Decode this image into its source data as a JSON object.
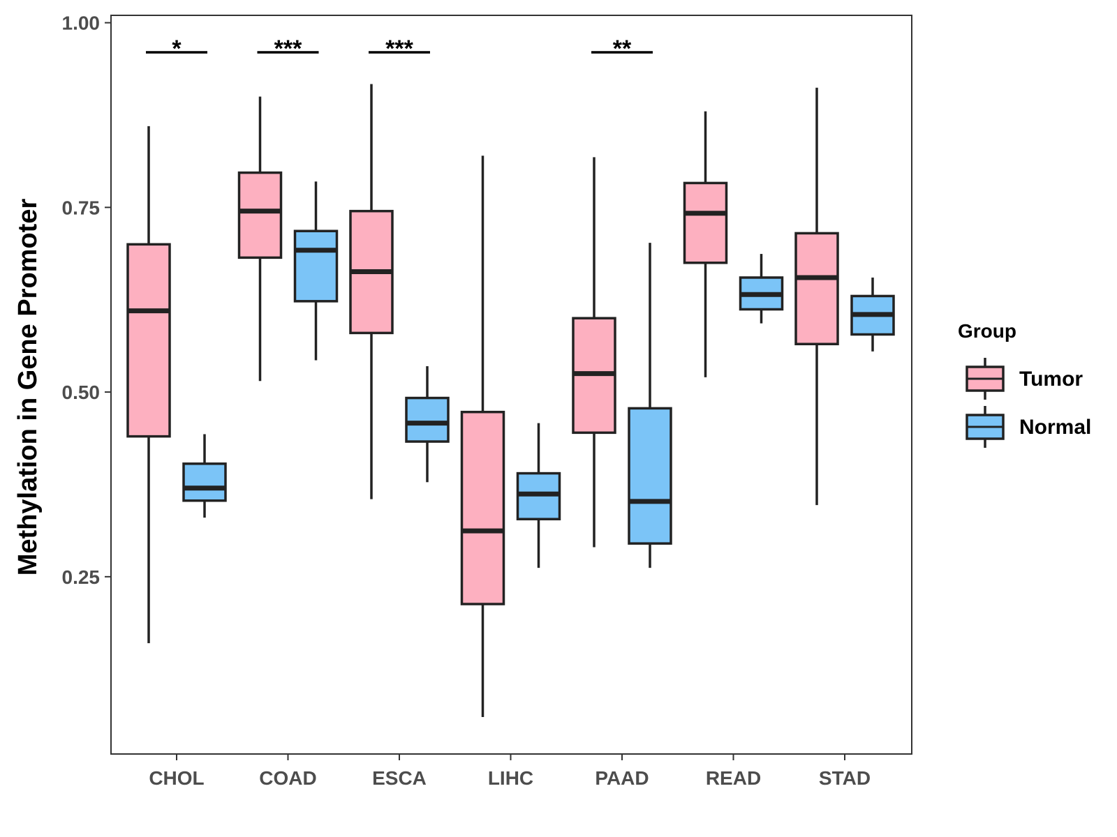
{
  "chart_data": {
    "type": "boxplot",
    "title": "",
    "xlabel": "",
    "ylabel": "Methylation in Gene Promoter",
    "ylim": [
      0.01,
      1.01
    ],
    "yticks": [
      0.25,
      0.5,
      0.75,
      1.0
    ],
    "ytick_labels": [
      "0.25",
      "0.50",
      "0.75",
      "1.00"
    ],
    "categories": [
      "CHOL",
      "COAD",
      "ESCA",
      "LIHC",
      "PAAD",
      "READ",
      "STAD"
    ],
    "legend": {
      "title": "Group",
      "position": "right",
      "entries": [
        {
          "name": "Tumor",
          "color": "#fdb0c0"
        },
        {
          "name": "Normal",
          "color": "#7bc4f7"
        }
      ]
    },
    "series": [
      {
        "name": "Tumor",
        "color": "#fdb0c0",
        "boxes": [
          {
            "min": 0.16,
            "q1": 0.44,
            "median": 0.61,
            "q3": 0.7,
            "max": 0.86
          },
          {
            "min": 0.515,
            "q1": 0.682,
            "median": 0.745,
            "q3": 0.797,
            "max": 0.9
          },
          {
            "min": 0.355,
            "q1": 0.58,
            "median": 0.663,
            "q3": 0.745,
            "max": 0.917
          },
          {
            "min": 0.06,
            "q1": 0.213,
            "median": 0.312,
            "q3": 0.473,
            "max": 0.82
          },
          {
            "min": 0.29,
            "q1": 0.445,
            "median": 0.525,
            "q3": 0.6,
            "max": 0.818
          },
          {
            "min": 0.52,
            "q1": 0.675,
            "median": 0.742,
            "q3": 0.783,
            "max": 0.88
          },
          {
            "min": 0.347,
            "q1": 0.565,
            "median": 0.655,
            "q3": 0.715,
            "max": 0.912
          }
        ]
      },
      {
        "name": "Normal",
        "color": "#7bc4f7",
        "boxes": [
          {
            "min": 0.33,
            "q1": 0.353,
            "median": 0.37,
            "q3": 0.403,
            "max": 0.443
          },
          {
            "min": 0.543,
            "q1": 0.623,
            "median": 0.692,
            "q3": 0.718,
            "max": 0.785
          },
          {
            "min": 0.378,
            "q1": 0.433,
            "median": 0.458,
            "q3": 0.492,
            "max": 0.535
          },
          {
            "min": 0.262,
            "q1": 0.328,
            "median": 0.362,
            "q3": 0.39,
            "max": 0.458
          },
          {
            "min": 0.262,
            "q1": 0.295,
            "median": 0.352,
            "q3": 0.478,
            "max": 0.702
          },
          {
            "min": 0.593,
            "q1": 0.612,
            "median": 0.632,
            "q3": 0.655,
            "max": 0.687
          },
          {
            "min": 0.555,
            "q1": 0.578,
            "median": 0.605,
            "q3": 0.63,
            "max": 0.655
          }
        ]
      }
    ],
    "significance": [
      {
        "category": "CHOL",
        "label": "*"
      },
      {
        "category": "COAD",
        "label": "***"
      },
      {
        "category": "ESCA",
        "label": "***"
      },
      {
        "category": "PAAD",
        "label": "**"
      }
    ],
    "significance_bar_y": 0.96
  }
}
